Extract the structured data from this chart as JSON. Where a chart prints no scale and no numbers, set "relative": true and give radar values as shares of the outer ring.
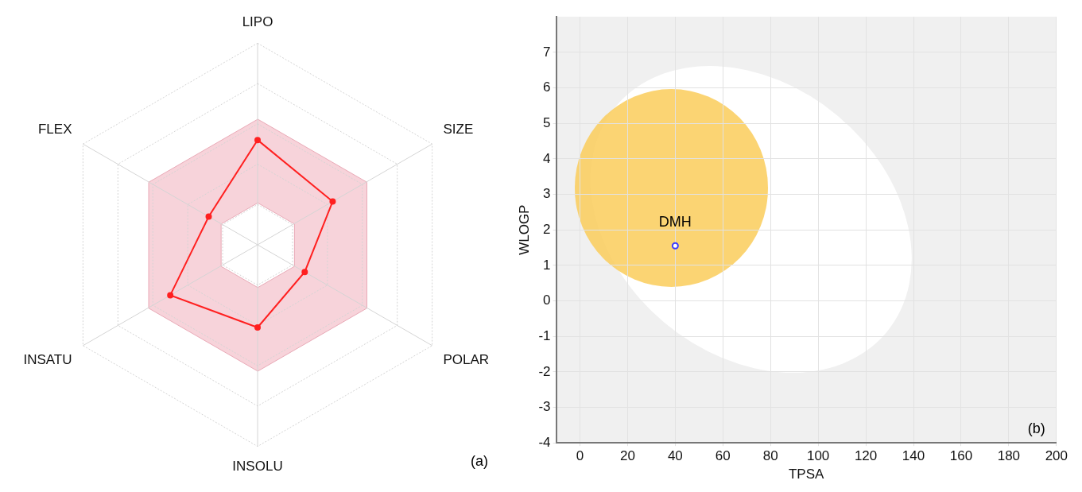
{
  "chart_data": [
    {
      "type": "radar",
      "categories": [
        "LIPO",
        "SIZE",
        "POLAR",
        "INSOLU",
        "INSATU",
        "FLEX"
      ],
      "series": [
        {
          "color": "#ff2020",
          "values": [
            0.52,
            0.43,
            0.27,
            0.41,
            0.5,
            0.28
          ]
        }
      ],
      "relative": true,
      "marker": "circle",
      "annotations": [
        "(a)"
      ]
    },
    {
      "type": "scatter",
      "xlabel": "TPSA",
      "ylabel": "WLOGP",
      "x": [
        40
      ],
      "values": [
        1.55
      ],
      "color": "#3b3bff",
      "marker": "circle",
      "xlim": [
        -10,
        200
      ],
      "ylim": [
        -4,
        8
      ],
      "xticks": [
        0,
        20,
        40,
        60,
        80,
        100,
        120,
        140,
        160,
        180,
        200
      ],
      "yticks": [
        -4,
        -3,
        -2,
        -1,
        0,
        1,
        2,
        3,
        4,
        5,
        6,
        7
      ],
      "grid": true,
      "annotations": [
        {
          "text": "DMH",
          "x": 40,
          "y": 1.55
        },
        "(b)"
      ]
    }
  ]
}
